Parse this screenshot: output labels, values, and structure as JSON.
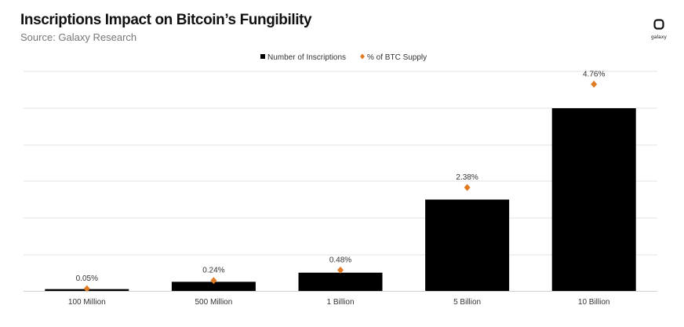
{
  "header": {
    "title": "Inscriptions Impact on Bitcoin’s Fungibility",
    "subtitle": "Source: Galaxy Research",
    "logo_text": "galaxy"
  },
  "colors": {
    "bar": "#000000",
    "marker": "#e07b24",
    "grid": "#e3e3e3"
  },
  "chart_data": {
    "type": "bar",
    "categories": [
      "100 Million",
      "500 Million",
      "1 Billion",
      "5 Billion",
      "10 Billion"
    ],
    "series": [
      {
        "name": "Number of Inscriptions",
        "kind": "bar",
        "values": [
          100000000,
          500000000,
          1000000000,
          5000000000,
          10000000000
        ]
      },
      {
        "name": "% of BTC Supply",
        "kind": "scatter",
        "values": [
          0.05,
          0.24,
          0.48,
          2.38,
          4.76
        ],
        "labels": [
          "0.05%",
          "0.24%",
          "0.48%",
          "2.38%",
          "4.76%"
        ]
      }
    ],
    "ylim_bars": [
      0,
      10000000000
    ],
    "ylim_percent": [
      0,
      5.2
    ],
    "legend_position": "top-center",
    "grid": true
  }
}
